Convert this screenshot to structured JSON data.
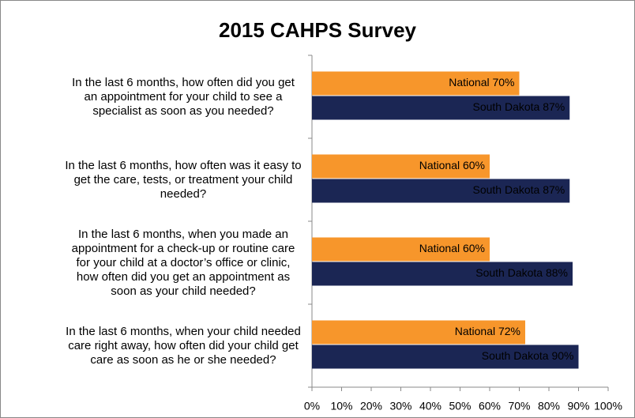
{
  "chart_data": {
    "type": "bar",
    "orientation": "horizontal",
    "title": "2015 CAHPS Survey",
    "categories": [
      "In the last 6 months, how often did you get an appointment for your child to see a specialist as soon as you needed?",
      "In the last 6 months, how often was it easy to get the care, tests, or treatment your child needed?",
      "In the last 6 months, when you made an appointment for a check-up or routine care for your child at a doctor’s office or clinic, how often did you get an appointment as soon as your child needed?",
      "In the last 6 months, when your child needed care right away, how often did your child get care as soon as he or she needed?"
    ],
    "series": [
      {
        "name": "National",
        "color": "#f7962b",
        "values": [
          70,
          60,
          60,
          72
        ],
        "value_labels": [
          "National 70%",
          "National 60%",
          "National 60%",
          "National 72%"
        ]
      },
      {
        "name": "South Dakota",
        "color": "#1b2654",
        "values": [
          87,
          87,
          88,
          90
        ],
        "value_labels": [
          "South Dakota 87%",
          "South Dakota 87%",
          "South Dakota 88%",
          "South Dakota 90%"
        ]
      }
    ],
    "xlim": [
      0,
      100
    ],
    "xticks": [
      {
        "value": 0,
        "label": "0%"
      },
      {
        "value": 10,
        "label": "10%"
      },
      {
        "value": 20,
        "label": "20%"
      },
      {
        "value": 30,
        "label": "30%"
      },
      {
        "value": 40,
        "label": "40%"
      },
      {
        "value": 50,
        "label": "50%"
      },
      {
        "value": 60,
        "label": "60%"
      },
      {
        "value": 70,
        "label": "70%"
      },
      {
        "value": 80,
        "label": "80%"
      },
      {
        "value": 90,
        "label": "90%"
      },
      {
        "value": 100,
        "label": "100%"
      }
    ],
    "grid": false
  }
}
